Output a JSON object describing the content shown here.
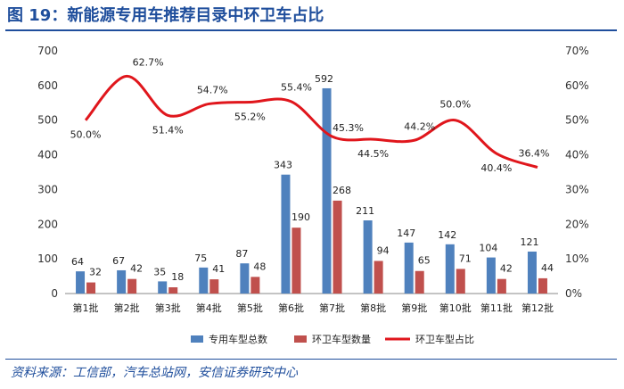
{
  "header": {
    "title": "图 19：新能源专用车推荐目录中环卫车占比"
  },
  "footer": {
    "source": "资料来源：工信部，汽车总站网，安信证券研究中心"
  },
  "colors": {
    "series1": "#4f81bd",
    "series2": "#c0504d",
    "series3": "#e0161c",
    "title": "#1f4e9c"
  },
  "chart_data": {
    "type": "bar+line",
    "categories": [
      "第1批",
      "第2批",
      "第3批",
      "第4批",
      "第5批",
      "第6批",
      "第7批",
      "第8批",
      "第9批",
      "第10批",
      "第11批",
      "第12批"
    ],
    "series": [
      {
        "name": "专用车型总数",
        "type": "bar",
        "axis": "left",
        "values": [
          64,
          67,
          35,
          75,
          87,
          343,
          592,
          211,
          147,
          142,
          104,
          121
        ]
      },
      {
        "name": "环卫车型数量",
        "type": "bar",
        "axis": "left",
        "values": [
          32,
          42,
          18,
          41,
          48,
          190,
          268,
          94,
          65,
          71,
          42,
          44
        ]
      },
      {
        "name": "环卫车型占比",
        "type": "line",
        "axis": "right",
        "values": [
          50.0,
          62.7,
          51.4,
          54.7,
          55.2,
          55.4,
          45.3,
          44.5,
          44.2,
          50.0,
          40.4,
          36.4
        ],
        "labels": [
          "50.0%",
          "62.7%",
          "51.4%",
          "54.7%",
          "55.2%",
          "55.4%",
          "45.3%",
          "44.5%",
          "44.2%",
          "50.0%",
          "40.4%",
          "36.4%"
        ]
      }
    ],
    "y_left": {
      "min": 0,
      "max": 700,
      "ticks": [
        "0",
        "100",
        "200",
        "300",
        "400",
        "500",
        "600",
        "700"
      ]
    },
    "y_right": {
      "min": 0,
      "max": 70,
      "ticks": [
        "0%",
        "10%",
        "20%",
        "30%",
        "40%",
        "50%",
        "60%",
        "70%"
      ]
    },
    "legend": [
      "专用车型总数",
      "环卫车型数量",
      "环卫车型占比"
    ],
    "legend_position": "bottom",
    "grid": false
  }
}
